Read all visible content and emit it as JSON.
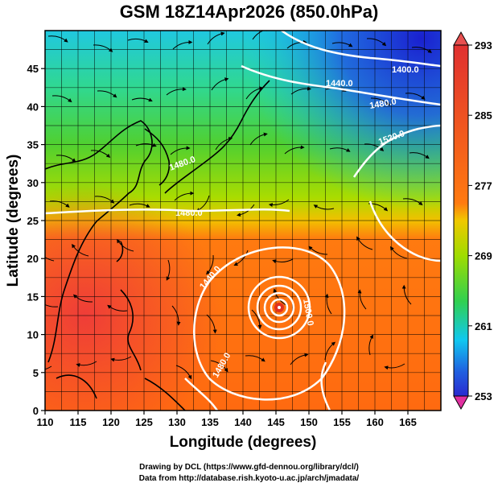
{
  "title": "GSM 18Z14Apr2026 (850.0hPa)",
  "x_axis": {
    "label": "Longitude (degrees)",
    "range": [
      110,
      170
    ],
    "ticks": [
      "110",
      "115",
      "120",
      "125",
      "130",
      "135",
      "140",
      "145",
      "150",
      "155",
      "160",
      "165"
    ]
  },
  "y_axis": {
    "label": "Latitude  (degrees)",
    "range": [
      0,
      50
    ],
    "ticks": [
      "0",
      "5",
      "10",
      "15",
      "20",
      "25",
      "30",
      "35",
      "40",
      "45"
    ]
  },
  "colorbar": {
    "ticks": [
      "293",
      "285",
      "277",
      "269",
      "261",
      "253"
    ],
    "range": [
      253,
      293
    ],
    "colors": [
      "#e0309a",
      "#8a2be2",
      "#1a2fd8",
      "#00bfff",
      "#22d880",
      "#3ad400",
      "#9ee000",
      "#f2c400",
      "#ff7a00",
      "#e82020"
    ]
  },
  "contour_labels": [
    "1400.0",
    "1440.0",
    "1480.0",
    "1520.0",
    "1480.0",
    "1440.0",
    "1500.0",
    "1480.0",
    "1480.0"
  ],
  "credits": {
    "drawing": "Drawing by DCL (https://www.gfd-dennou.org/library/dcl/)",
    "data": "Data from http://database.rish.kyoto-u.ac.jp/arch/jmadata/"
  }
}
